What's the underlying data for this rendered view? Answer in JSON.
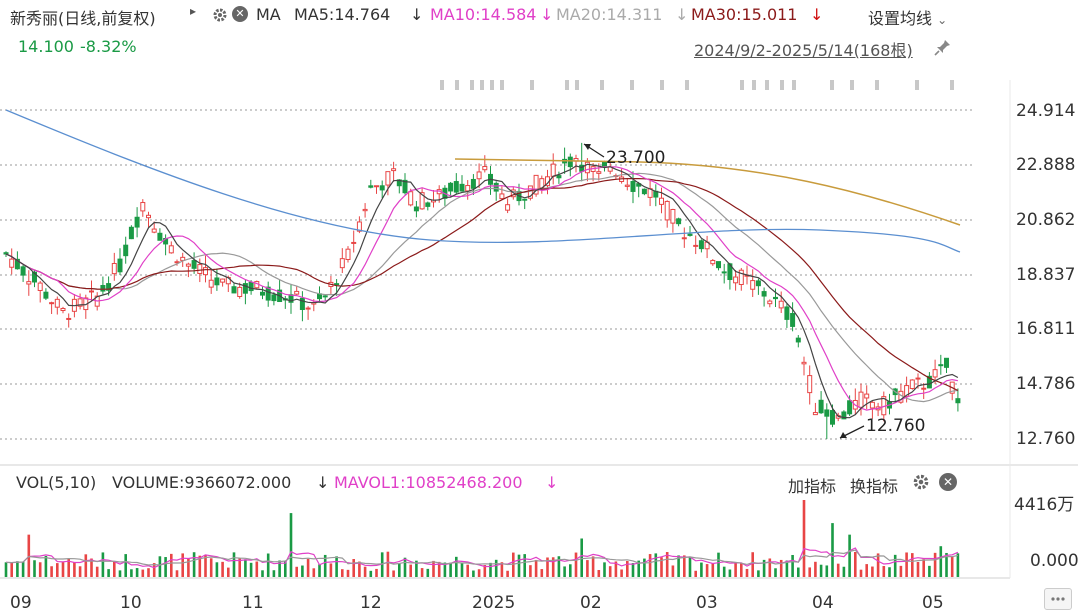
{
  "header": {
    "stock_name": "新秀丽(日线,前复权)",
    "menu_arrow": "▸",
    "gear_icon": "gear-icon",
    "close_icon": "close-icon",
    "ma_label": "MA",
    "ma5": "MA5:14.764",
    "ma10": "MA10:14.584",
    "ma20": "MA20:14.311",
    "ma30": "MA30:15.011",
    "down_arrow": "↓",
    "settings_label": "设置均线",
    "settings_chevron": "⌄",
    "price": "14.100",
    "change": "-8.32%",
    "range": "2024/9/2-2025/5/14(168根)",
    "pin_icon": "pin-icon"
  },
  "colors": {
    "up": "#e84545",
    "down": "#1a9a45",
    "ma5": "#444444",
    "ma10": "#e040c8",
    "ma20": "#999999",
    "ma30": "#8b1a1a",
    "ma60": "#c89b3c",
    "ma120": "#5b8fd0"
  },
  "price_axis": {
    "ticks": [
      "24.914",
      "22.888",
      "20.862",
      "18.837",
      "16.811",
      "14.786",
      "12.760"
    ]
  },
  "annotations": {
    "high": "23.700",
    "low": "12.760"
  },
  "volume": {
    "indicator": "VOL(5,10)",
    "volume_label": "VOLUME:9366072.000",
    "mavol_label": "MAVOL1:10852468.200",
    "add_indicator": "加指标",
    "switch_indicator": "换指标",
    "axis_top": "4416万",
    "axis_zero": "0.000"
  },
  "x_axis": {
    "labels": [
      "09",
      "10",
      "11",
      "12",
      "2025",
      "02",
      "03",
      "04",
      "05"
    ]
  },
  "chart_data": {
    "type": "candlestick",
    "x_start": "2024/9/2",
    "x_end": "2025/5/14",
    "bar_count": 168,
    "price_range": [
      12.76,
      24.914
    ],
    "high": 23.7,
    "low": 12.76,
    "last_close": 14.1,
    "last_change_pct": -8.32,
    "moving_averages": {
      "MA5": 14.764,
      "MA10": 14.584,
      "MA20": 14.311,
      "MA30": 15.011
    },
    "volume_max_wan": 4416,
    "last_volume": 9366072,
    "mavol1": 10852468.2
  }
}
